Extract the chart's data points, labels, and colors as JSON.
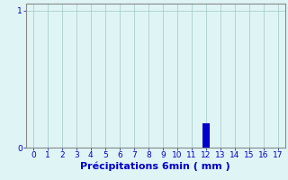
{
  "title": "",
  "xlabel": "Précipitations 6min ( mm )",
  "xlim": [
    -0.5,
    17.5
  ],
  "ylim": [
    0,
    1.05
  ],
  "yticks": [
    0,
    1
  ],
  "xticks": [
    0,
    1,
    2,
    3,
    4,
    5,
    6,
    7,
    8,
    9,
    10,
    11,
    12,
    13,
    14,
    15,
    16,
    17
  ],
  "bar_x": [
    12
  ],
  "bar_height": [
    0.18
  ],
  "bar_color": "#0000cc",
  "bar_width": 0.5,
  "bg_color": "#dff5f5",
  "grid_color": "#aacece",
  "tick_color": "#0000cc",
  "label_color": "#0000cc",
  "xlabel_fontsize": 8,
  "tick_fontsize": 6.5,
  "spine_color": "#888888"
}
